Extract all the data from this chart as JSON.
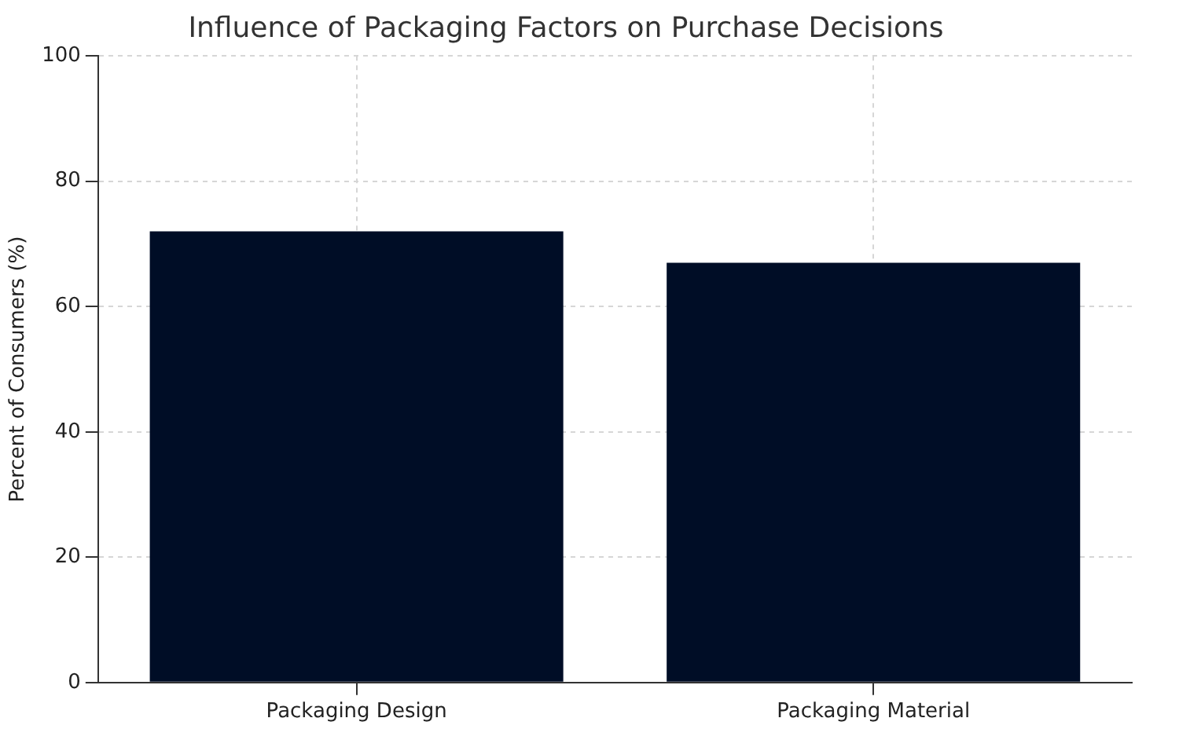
{
  "chart_data": {
    "type": "bar",
    "title": "Influence of Packaging Factors on Purchase Decisions",
    "ylabel": "Percent of Consumers (%)",
    "categories": [
      "Packaging Design",
      "Packaging Material"
    ],
    "values": [
      72,
      67
    ],
    "color": "#000d26",
    "ylim": [
      0,
      100
    ],
    "yticks": [
      0,
      20,
      40,
      60,
      80,
      100
    ],
    "grid": true
  }
}
